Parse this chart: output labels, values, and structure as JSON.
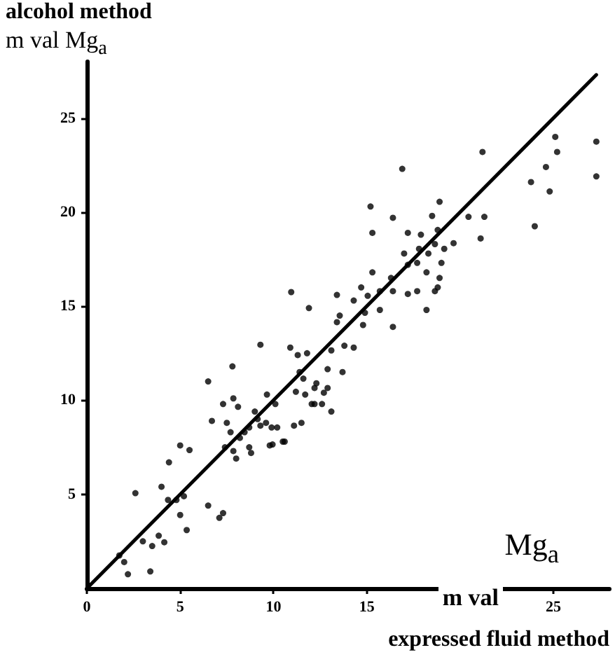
{
  "chart_data": {
    "type": "scatter",
    "xlabel": "Mg$_{a}$\nm val\nexpressed fluid method",
    "ylabel": "alcohol method\nm val Mg$_{a}$",
    "xlim": [
      0,
      28
    ],
    "ylim": [
      0,
      28
    ],
    "xticks": [
      0,
      5,
      10,
      15,
      {
        "value": 20,
        "label": null
      },
      25
    ],
    "yticks": [
      5,
      10,
      15,
      20,
      25
    ],
    "grid": false,
    "series": [
      {
        "color": "#000000",
        "marker": "circle",
        "x": [
          1.74,
          2.0,
          2.2,
          2.6,
          3.0,
          3.4,
          3.5,
          3.85,
          4.0,
          4.15,
          4.4,
          4.35,
          4.8,
          5.0,
          5.0,
          5.2,
          5.35,
          5.5,
          6.5,
          6.5,
          6.7,
          7.1,
          7.3,
          7.3,
          7.4,
          7.5,
          7.7,
          7.8,
          7.85,
          7.85,
          8.0,
          8.1,
          8.2,
          8.45,
          8.7,
          8.7,
          8.8,
          9.0,
          9.15,
          9.3,
          9.3,
          9.6,
          9.65,
          9.8,
          9.9,
          10.1,
          10.2,
          10.5,
          10.9,
          11.1,
          11.2,
          11.3,
          11.5,
          11.6,
          11.7,
          11.8,
          11.9,
          12.05,
          12.3,
          12.6,
          13.55,
          13.4,
          14.8,
          14.9,
          15.7,
          16.4,
          18.2,
          13.1,
          13.8,
          14.3,
          11.4,
          12.9,
          13.7,
          12.2,
          12.9,
          12.7,
          12.2,
          13.1,
          9.95,
          10.6,
          10.95,
          13.4,
          14.3,
          14.7,
          15.3,
          15.05,
          15.7,
          16.3,
          16.4,
          17.2,
          17.7,
          18.65,
          18.9,
          15.3,
          16.4,
          16.9,
          15.2,
          17.2,
          17.0,
          17.2,
          17.7,
          17.9,
          17.8,
          18.3,
          18.5,
          18.65,
          18.8,
          18.9,
          19.15,
          19.65,
          18.2,
          19.0,
          18.8,
          20.45,
          21.1,
          21.3,
          21.2,
          23.8,
          24.0,
          24.6,
          24.8,
          25.1,
          25.2,
          27.3,
          27.3
        ],
        "values": [
          1.75,
          1.4,
          0.75,
          5.06,
          2.5,
          0.9,
          2.25,
          2.8,
          5.4,
          2.45,
          6.7,
          4.7,
          4.7,
          7.6,
          3.9,
          4.9,
          3.1,
          7.35,
          11.0,
          4.4,
          8.9,
          3.75,
          4.0,
          9.8,
          7.5,
          8.8,
          8.3,
          11.8,
          10.1,
          7.3,
          6.9,
          9.65,
          8.0,
          8.3,
          7.5,
          8.55,
          7.2,
          9.4,
          9.0,
          12.95,
          8.65,
          8.8,
          10.3,
          7.6,
          8.55,
          9.8,
          8.55,
          7.8,
          12.8,
          8.65,
          10.45,
          12.4,
          8.8,
          11.15,
          10.3,
          12.5,
          14.9,
          9.8,
          10.9,
          9.8,
          14.5,
          14.15,
          14.0,
          14.65,
          14.8,
          13.9,
          14.8,
          12.65,
          12.9,
          12.8,
          11.5,
          11.65,
          11.5,
          10.65,
          10.65,
          10.4,
          9.8,
          9.4,
          7.65,
          7.8,
          15.75,
          15.6,
          15.3,
          16.0,
          16.8,
          15.55,
          15.8,
          16.5,
          15.8,
          15.65,
          15.8,
          15.8,
          16.5,
          18.9,
          19.7,
          22.3,
          20.3,
          18.9,
          17.8,
          17.2,
          17.3,
          18.8,
          18.05,
          17.8,
          19.8,
          18.3,
          19.05,
          20.55,
          18.05,
          18.35,
          16.8,
          17.3,
          16.0,
          19.75,
          18.6,
          19.75,
          23.2,
          21.6,
          19.25,
          22.4,
          21.1,
          24.0,
          23.2,
          23.75,
          21.9
        ]
      },
      {
        "type": "line",
        "color": "#000000",
        "x": [
          0,
          27.3
        ],
        "values": [
          0,
          27.3
        ],
        "line_style": "solid",
        "marker": "none"
      }
    ]
  }
}
